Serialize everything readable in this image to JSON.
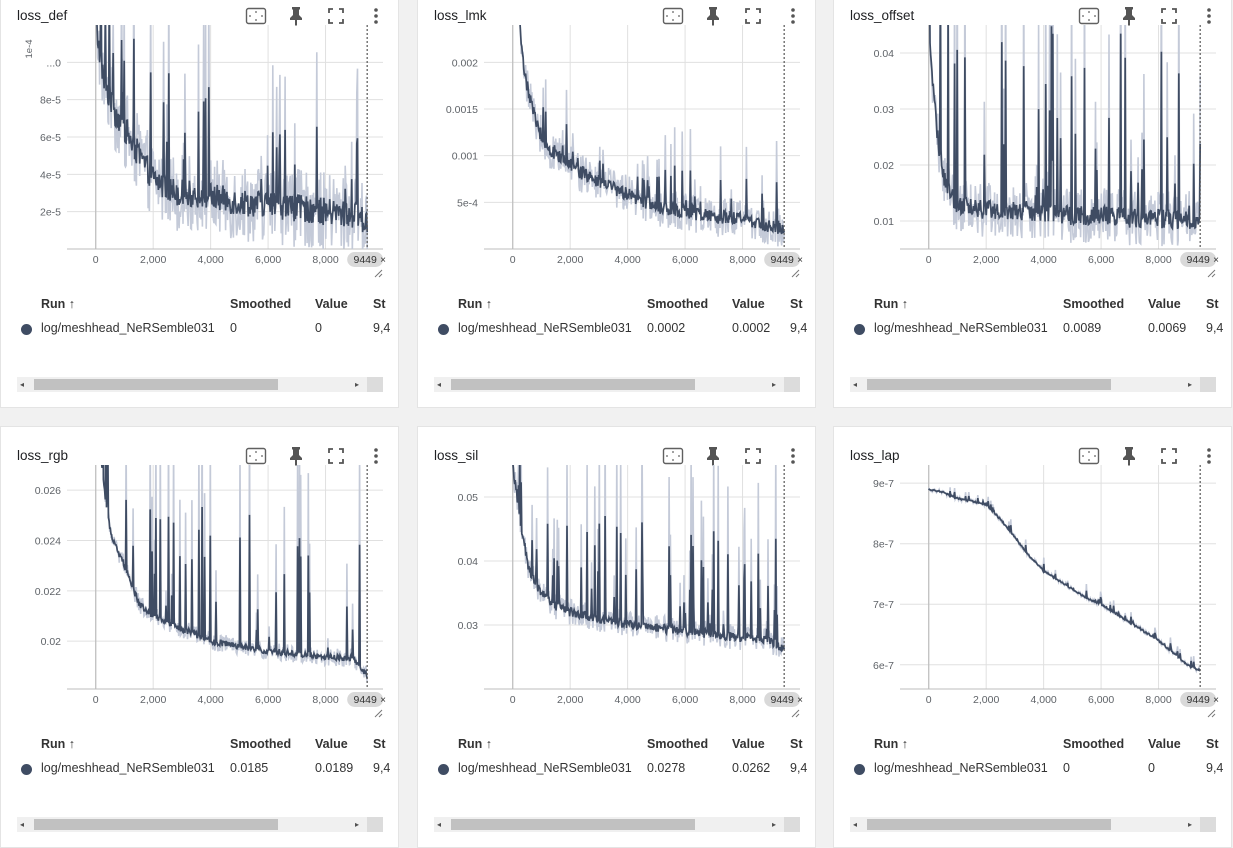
{
  "table": {
    "run_header": "Run",
    "smoothed_header": "Smoothed",
    "value_header": "Value",
    "step_header": "St"
  },
  "icons": {
    "fit": "fit-domain-icon",
    "pin": "pin-icon",
    "fullscreen": "fullscreen-icon",
    "menu": "more-vert-icon",
    "sort": "arrow-up-icon",
    "close": "close-icon",
    "resize": "resize-handle-icon"
  },
  "colors": {
    "line": "#3f4c63",
    "raw_line": "#c4cad8",
    "grid": "#e0e0e0"
  },
  "cards": [
    {
      "title": "loss_def",
      "run": "log/meshhead_NeRSemble031",
      "smoothed": "0",
      "value": "0",
      "step": "9,4",
      "step_chip": "9449",
      "chart_data": {
        "type": "line",
        "x_ticks": [
          "0",
          "2,000",
          "4,000",
          "6,000",
          "8,000"
        ],
        "x_tick_values": [
          0,
          2000,
          4000,
          6000,
          8000
        ],
        "y_ticks": [
          "2e-5",
          "4e-5",
          "6e-5",
          "8e-5",
          "...0"
        ],
        "y_tick_values": [
          2e-05,
          4e-05,
          6e-05,
          8e-05,
          0.0001
        ],
        "y_multiplier": "1e-4",
        "xlim": [
          -1000,
          10000
        ],
        "ylim": [
          0.0,
          0.00012
        ],
        "current_step": 9449,
        "series": [
          {
            "x": [
              0,
              300,
              600,
              1000,
              1500,
              2000,
              2500,
              3000,
              4000,
              5000,
              6000,
              7000,
              8000,
              9000,
              9449
            ],
            "values": [
              0.00012,
              9e-05,
              7.5e-05,
              6.5e-05,
              5e-05,
              3.8e-05,
              3.2e-05,
              3e-05,
              2.8e-05,
              2.5e-05,
              2.4e-05,
              2.2e-05,
              2e-05,
              1.8e-05,
              1.4e-05
            ]
          }
        ]
      }
    },
    {
      "title": "loss_lmk",
      "run": "log/meshhead_NeRSemble031",
      "smoothed": "0.0002",
      "value": "0.0002",
      "step": "9,4",
      "step_chip": "9449",
      "chart_data": {
        "type": "line",
        "x_ticks": [
          "0",
          "2,000",
          "4,000",
          "6,000",
          "8,000"
        ],
        "x_tick_values": [
          0,
          2000,
          4000,
          6000,
          8000
        ],
        "y_ticks": [
          "5e-4",
          "0.001",
          "0.0015",
          "0.002"
        ],
        "y_tick_values": [
          0.0005,
          0.001,
          0.0015,
          0.002
        ],
        "xlim": [
          -1000,
          10000
        ],
        "ylim": [
          0.0,
          0.0024
        ],
        "current_step": 9449,
        "series": [
          {
            "x": [
              250,
              400,
              600,
              800,
              1000,
              1500,
              2000,
              2500,
              3000,
              4000,
              5000,
              6000,
              7000,
              8000,
              9000,
              9449
            ],
            "values": [
              0.0024,
              0.0019,
              0.0016,
              0.0014,
              0.0012,
              0.001,
              0.0009,
              0.0008,
              0.00072,
              0.00058,
              0.00046,
              0.0004,
              0.00035,
              0.00032,
              0.00025,
              0.00022
            ]
          }
        ]
      }
    },
    {
      "title": "loss_offset",
      "run": "log/meshhead_NeRSemble031",
      "smoothed": "0.0089",
      "value": "0.0069",
      "step": "9,4",
      "step_chip": "9449",
      "chart_data": {
        "type": "line",
        "x_ticks": [
          "0",
          "2,000",
          "4,000",
          "6,000",
          "8,000"
        ],
        "x_tick_values": [
          0,
          2000,
          4000,
          6000,
          8000
        ],
        "y_ticks": [
          "0.01",
          "0.02",
          "0.03",
          "0.04"
        ],
        "y_tick_values": [
          0.01,
          0.02,
          0.03,
          0.04
        ],
        "xlim": [
          -1000,
          10000
        ],
        "ylim": [
          0.005,
          0.045
        ],
        "current_step": 9449,
        "series": [
          {
            "x": [
              0,
              300,
              600,
              1000,
              2000,
              3000,
              4000,
              5000,
              6000,
              7000,
              8000,
              9000,
              9449
            ],
            "values": [
              0.045,
              0.025,
              0.016,
              0.013,
              0.012,
              0.012,
              0.0115,
              0.011,
              0.011,
              0.0105,
              0.0105,
              0.01,
              0.009
            ]
          }
        ]
      }
    },
    {
      "title": "loss_rgb",
      "run": "log/meshhead_NeRSemble031",
      "smoothed": "0.0185",
      "value": "0.0189",
      "step": "9,4",
      "step_chip": "9449",
      "chart_data": {
        "type": "line",
        "x_ticks": [
          "0",
          "2,000",
          "4,000",
          "6,000",
          "8,000"
        ],
        "x_tick_values": [
          0,
          2000,
          4000,
          6000,
          8000
        ],
        "y_ticks": [
          "0.02",
          "0.022",
          "0.024",
          "0.026"
        ],
        "y_tick_values": [
          0.02,
          0.022,
          0.024,
          0.026
        ],
        "xlim": [
          -1000,
          10000
        ],
        "ylim": [
          0.0181,
          0.027
        ],
        "current_step": 9449,
        "series": [
          {
            "x": [
              200,
              400,
              600,
              1000,
              1500,
              2000,
              3000,
              4000,
              5000,
              6000,
              7000,
              8000,
              9000,
              9449
            ],
            "values": [
              0.027,
              0.025,
              0.024,
              0.023,
              0.0215,
              0.021,
              0.0205,
              0.02,
              0.0198,
              0.0196,
              0.0195,
              0.0194,
              0.0193,
              0.0186
            ]
          }
        ]
      }
    },
    {
      "title": "loss_sil",
      "run": "log/meshhead_NeRSemble031",
      "smoothed": "0.0278",
      "value": "0.0262",
      "step": "9,4",
      "step_chip": "9449",
      "chart_data": {
        "type": "line",
        "x_ticks": [
          "0",
          "2,000",
          "4,000",
          "6,000",
          "8,000"
        ],
        "x_tick_values": [
          0,
          2000,
          4000,
          6000,
          8000
        ],
        "y_ticks": [
          "0.03",
          "0.04",
          "0.05"
        ],
        "y_tick_values": [
          0.03,
          0.04,
          0.05
        ],
        "xlim": [
          -1000,
          10000
        ],
        "ylim": [
          0.02,
          0.055
        ],
        "current_step": 9449,
        "series": [
          {
            "x": [
              0,
              300,
              600,
              1000,
              1500,
              2000,
              3000,
              4000,
              5000,
              6000,
              7000,
              8000,
              9000,
              9449
            ],
            "values": [
              0.055,
              0.045,
              0.038,
              0.035,
              0.033,
              0.032,
              0.031,
              0.03,
              0.0295,
              0.029,
              0.0285,
              0.028,
              0.0275,
              0.026
            ]
          }
        ]
      }
    },
    {
      "title": "loss_lap",
      "run": "log/meshhead_NeRSemble031",
      "smoothed": "0",
      "value": "0",
      "step": "9,4",
      "step_chip": "9449",
      "chart_data": {
        "type": "line",
        "x_ticks": [
          "0",
          "2,000",
          "4,000",
          "6,000",
          "8,000"
        ],
        "x_tick_values": [
          0,
          2000,
          4000,
          6000,
          8000
        ],
        "y_ticks": [
          "6e-7",
          "7e-7",
          "8e-7",
          "9e-7"
        ],
        "y_tick_values": [
          6e-07,
          7e-07,
          8e-07,
          9e-07
        ],
        "xlim": [
          -1000,
          10000
        ],
        "ylim": [
          5.6e-07,
          9.3e-07
        ],
        "current_step": 9449,
        "series": [
          {
            "x": [
              0,
              500,
              1000,
              1500,
              2000,
              2500,
              3000,
              3500,
              4000,
              4500,
              5000,
              5500,
              6000,
              6500,
              7000,
              7500,
              8000,
              8500,
              9000,
              9449
            ],
            "values": [
              8.9e-07,
              8.85e-07,
              8.75e-07,
              8.7e-07,
              8.65e-07,
              8.4e-07,
              8.1e-07,
              7.8e-07,
              7.55e-07,
              7.4e-07,
              7.25e-07,
              7.1e-07,
              7e-07,
              6.85e-07,
              6.7e-07,
              6.55e-07,
              6.4e-07,
              6.2e-07,
              6e-07,
              5.9e-07
            ]
          }
        ]
      }
    }
  ]
}
